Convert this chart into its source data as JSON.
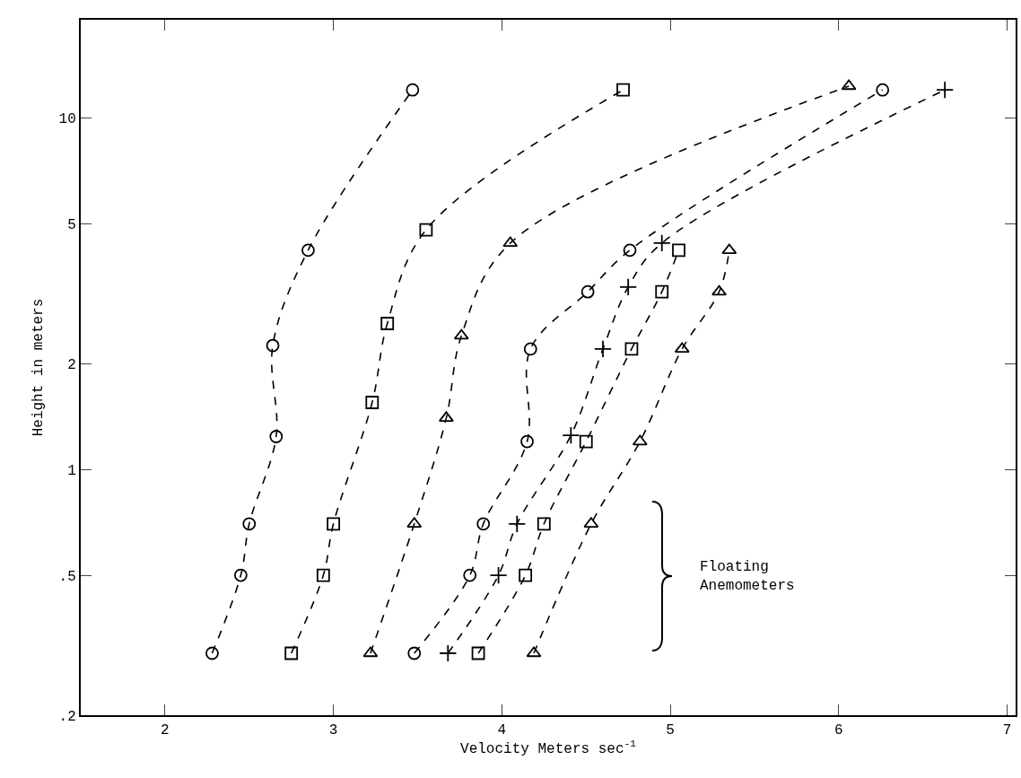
{
  "chart_data": {
    "type": "line",
    "xlabel": "Velocity Meters sec$^{-1}$",
    "ylabel": "Height in meters",
    "log": "y",
    "grid": false,
    "line_style": "dashed",
    "xlim": [
      1.5,
      7.05
    ],
    "xticks": [
      2,
      3,
      4,
      5,
      6,
      7
    ],
    "ylim": [
      0.2,
      19
    ],
    "yticks": [
      {
        "value": 0.2,
        "label": ".2"
      },
      {
        "value": 0.5,
        "label": ".5"
      },
      1,
      2,
      5,
      10
    ],
    "annotations": [
      "Floating\nAnemometers"
    ],
    "series": [
      {
        "color": "#000000",
        "marker": "circle",
        "x": [
          2.28,
          2.45,
          2.5,
          2.66,
          2.64,
          2.85,
          3.47
        ],
        "values": [
          0.3,
          0.5,
          0.7,
          1.24,
          2.25,
          4.2,
          12
        ]
      },
      {
        "color": "#000000",
        "marker": "square",
        "x": [
          2.75,
          2.94,
          3.0,
          3.23,
          3.32,
          3.55,
          4.72
        ],
        "values": [
          0.3,
          0.5,
          0.7,
          1.55,
          2.6,
          4.8,
          12
        ]
      },
      {
        "color": "#000000",
        "marker": "triangle",
        "x": [
          3.22,
          3.48,
          3.67,
          3.76,
          4.05,
          6.06
        ],
        "values": [
          0.3,
          0.7,
          1.4,
          2.4,
          4.4,
          12.3
        ]
      },
      {
        "color": "#000000",
        "marker": "circle",
        "x": [
          3.48,
          3.81,
          3.89,
          4.15,
          4.17,
          4.51,
          4.76,
          6.26
        ],
        "values": [
          0.3,
          0.5,
          0.7,
          1.2,
          2.2,
          3.2,
          4.2,
          12
        ]
      },
      {
        "color": "#000000",
        "marker": "cross",
        "x": [
          3.68,
          3.98,
          4.09,
          4.41,
          4.6,
          4.75,
          4.95,
          6.63
        ],
        "values": [
          0.3,
          0.5,
          0.7,
          1.25,
          2.2,
          3.3,
          4.4,
          12
        ]
      },
      {
        "color": "#000000",
        "marker": "square",
        "x": [
          3.86,
          4.14,
          4.25,
          4.5,
          4.77,
          4.95,
          5.05
        ],
        "values": [
          0.3,
          0.5,
          0.7,
          1.2,
          2.2,
          3.2,
          4.2
        ]
      },
      {
        "color": "#000000",
        "marker": "triangle",
        "x": [
          4.19,
          4.53,
          4.82,
          5.07,
          5.29,
          5.35
        ],
        "values": [
          0.3,
          0.7,
          1.2,
          2.2,
          3.2,
          4.2
        ]
      }
    ]
  }
}
